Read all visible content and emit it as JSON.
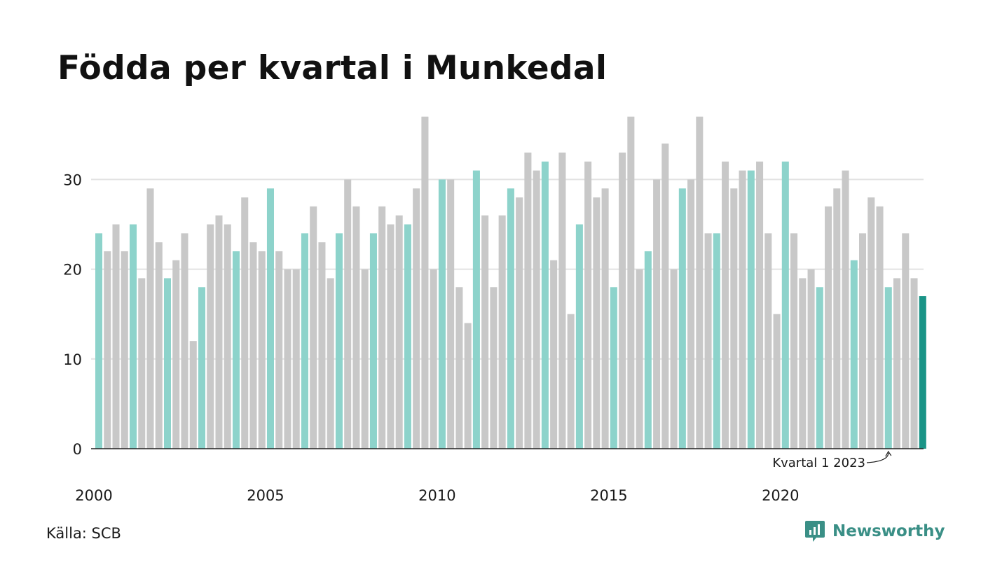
{
  "title": "Födda per kvartal i Munkedal",
  "source": "Källa: SCB",
  "brand": {
    "name": "Newsworthy",
    "icon": "newsworthy-logo-icon"
  },
  "colors": {
    "q1": "#8dd3cb",
    "other": "#c8c8c8",
    "latest": "#1a9487",
    "grid": "#e2e2e2",
    "axis": "#222222",
    "brand": "#3a8f86"
  },
  "chart_data": {
    "type": "bar",
    "title": "Födda per kvartal i Munkedal",
    "xlabel": "",
    "ylabel": "",
    "ylim": [
      0,
      37
    ],
    "yticks": [
      0,
      10,
      20,
      30
    ],
    "xticks": [
      "2000",
      "2005",
      "2010",
      "2015",
      "2020"
    ],
    "grid": true,
    "start_year": 2000,
    "highlight": "Kvartal 1",
    "annotation": "Kvartal 1 2023",
    "values": [
      24,
      22,
      25,
      22,
      25,
      19,
      29,
      23,
      19,
      21,
      24,
      12,
      18,
      25,
      26,
      25,
      22,
      28,
      23,
      22,
      29,
      22,
      20,
      20,
      24,
      27,
      23,
      19,
      24,
      30,
      27,
      20,
      24,
      27,
      25,
      26,
      25,
      29,
      37,
      20,
      30,
      30,
      18,
      14,
      31,
      26,
      18,
      26,
      29,
      28,
      33,
      31,
      32,
      21,
      33,
      15,
      25,
      32,
      28,
      29,
      18,
      33,
      37,
      20,
      22,
      30,
      34,
      20,
      29,
      30,
      37,
      24,
      24,
      32,
      29,
      31,
      31,
      32,
      24,
      15,
      32,
      24,
      19,
      20,
      18,
      27,
      29,
      31,
      21,
      24,
      28,
      27,
      18,
      19,
      24,
      19,
      17
    ]
  }
}
